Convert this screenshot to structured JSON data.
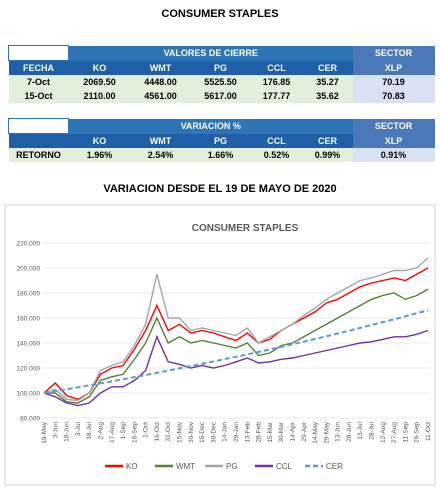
{
  "title": "CONSUMER STAPLES",
  "table1": {
    "group_header": "VALORES DE CIERRE",
    "sector": "SECTOR",
    "columns": [
      "FECHA",
      "KO",
      "WMT",
      "PG",
      "CCL",
      "CER",
      "XLP"
    ],
    "rows": [
      [
        "7-Oct",
        "2069.50",
        "4448.00",
        "5525.50",
        "176.85",
        "35.27",
        "70.19"
      ],
      [
        "15-Oct",
        "2110.00",
        "4561.00",
        "5617.00",
        "177.77",
        "35.62",
        "70.83"
      ]
    ]
  },
  "table2": {
    "group_header": "VARIACION %",
    "sector": "SECTOR",
    "columns": [
      "KO",
      "WMT",
      "PG",
      "CCL",
      "CER",
      "XLP"
    ],
    "row_label": "RETORNO",
    "row": [
      "1.96%",
      "2.54%",
      "1.66%",
      "0.52%",
      "0.99%",
      "0.91%"
    ]
  },
  "subtitle": "VARIACION DESDE EL 19 DE MAYO DE 2020",
  "chart_data": {
    "type": "line",
    "title": "CONSUMER STAPLES",
    "categories": [
      "19-May",
      "3-Jun",
      "18-Jun",
      "3-Jul",
      "18-Jul",
      "2-Aug",
      "17-Aug",
      "1-Sep",
      "16-Sep",
      "1-Oct",
      "16-Oct",
      "31-Oct",
      "15-Nov",
      "30-Nov",
      "15-Dec",
      "30-Dec",
      "14-Jan",
      "29-Jan",
      "13-Feb",
      "28-Feb",
      "15-Mar",
      "30-Mar",
      "14-Apr",
      "29-Apr",
      "14-May",
      "29-May",
      "13-Jun",
      "28-Jun",
      "13-Jul",
      "28-Jul",
      "12-Aug",
      "27-Aug",
      "11-Sep",
      "26-Sep",
      "11-Oct"
    ],
    "ylim": [
      80,
      220
    ],
    "yticks": [
      {
        "value": 80,
        "label": "80.000"
      },
      {
        "value": 100,
        "label": "100.000"
      },
      {
        "value": 120,
        "label": "120.000"
      },
      {
        "value": 140,
        "label": "140.000"
      },
      {
        "value": 160,
        "label": "160.000"
      },
      {
        "value": 180,
        "label": "180.000"
      },
      {
        "value": 200,
        "label": "200.000"
      },
      {
        "value": 220,
        "label": "220.000"
      }
    ],
    "grid": true,
    "series": [
      {
        "name": "KO",
        "color": "#ff0000",
        "values": [
          100,
          108,
          98,
          95,
          100,
          115,
          120,
          122,
          135,
          150,
          170,
          150,
          155,
          148,
          150,
          148,
          145,
          142,
          148,
          140,
          143,
          150,
          155,
          160,
          165,
          172,
          175,
          180,
          185,
          188,
          190,
          192,
          190,
          195,
          200
        ]
      },
      {
        "name": "WMT",
        "color": "#548235",
        "values": [
          100,
          100,
          93,
          92,
          97,
          110,
          113,
          115,
          127,
          140,
          160,
          140,
          145,
          140,
          142,
          140,
          138,
          136,
          140,
          130,
          132,
          138,
          140,
          145,
          150,
          155,
          160,
          165,
          170,
          175,
          178,
          180,
          175,
          178,
          183
        ]
      },
      {
        "name": "PG",
        "color": "#a5a5a5",
        "values": [
          100,
          103,
          95,
          94,
          100,
          118,
          122,
          125,
          138,
          155,
          195,
          160,
          160,
          150,
          152,
          150,
          148,
          146,
          152,
          140,
          145,
          150,
          155,
          162,
          168,
          175,
          180,
          185,
          190,
          192,
          195,
          198,
          198,
          200,
          208
        ]
      },
      {
        "name": "CCL",
        "color": "#7030a0",
        "values": [
          100,
          97,
          92,
          90,
          92,
          100,
          105,
          105,
          110,
          118,
          145,
          125,
          123,
          120,
          122,
          120,
          122,
          125,
          128,
          124,
          125,
          127,
          128,
          130,
          132,
          134,
          136,
          138,
          140,
          141,
          143,
          145,
          145,
          147,
          150
        ]
      },
      {
        "name": "CER",
        "color": "#5b9bd5",
        "dashed": true,
        "values": [
          100,
          101.5,
          103,
          104.6,
          106.2,
          107.7,
          109.3,
          111,
          112.7,
          114.4,
          116.2,
          117.9,
          119.7,
          121.5,
          123.3,
          125.2,
          127.1,
          129,
          130.9,
          132.9,
          134.9,
          136.9,
          139,
          141.1,
          143.2,
          145.4,
          147.6,
          149.8,
          152.1,
          154.4,
          156.7,
          159,
          161.4,
          163.9,
          166
        ]
      }
    ]
  }
}
